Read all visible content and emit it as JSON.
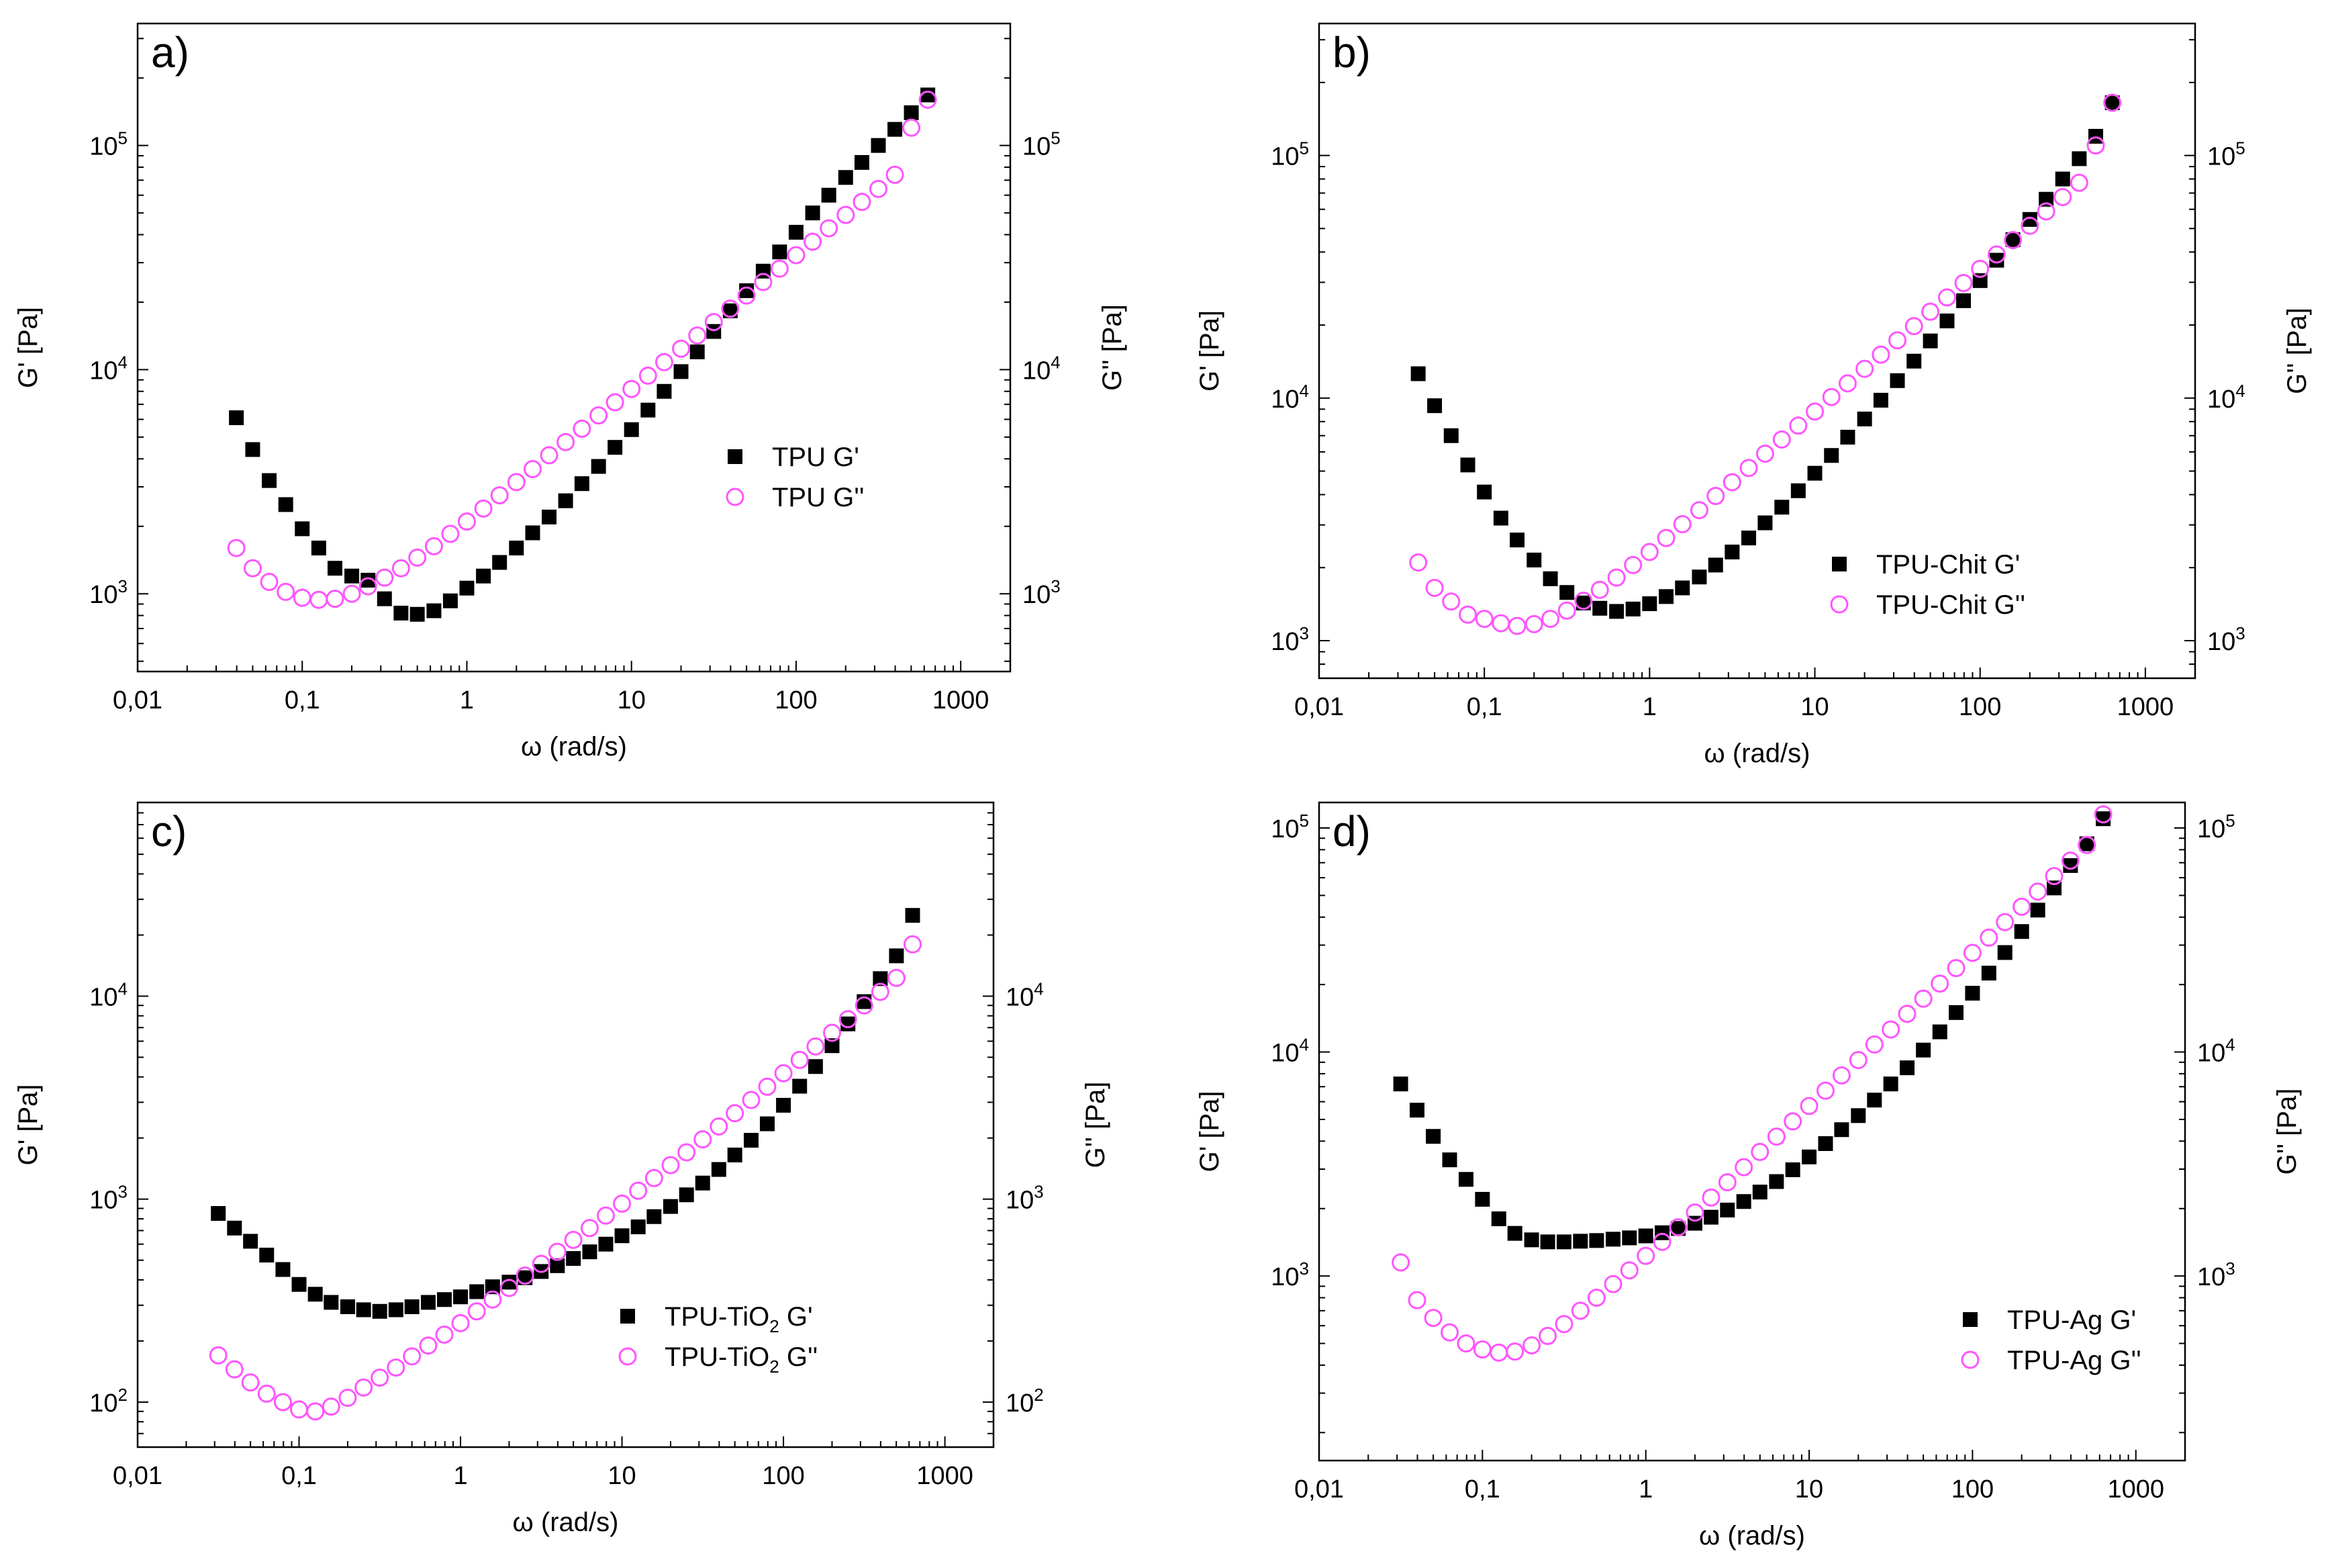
{
  "figure": {
    "colors": {
      "gprime": "#000000",
      "gdoubleprime": "#ff55ff",
      "axis": "#000000"
    }
  },
  "chart_data": [
    {
      "panel": "a)",
      "type": "scatter",
      "xscale": "log",
      "yscale": "log",
      "xlim": [
        0.01,
        2000
      ],
      "ylim": [
        450,
        350000
      ],
      "xticks": [
        "0,01",
        "0,1",
        "1",
        "10",
        "100",
        "1000"
      ],
      "yticks_left": [
        "10^3",
        "10^4",
        "10^5"
      ],
      "yticks_right": [
        "10^3",
        "10^4",
        "10^5"
      ],
      "xlabel": "ω (rad/s)",
      "ylabel_left": "G' [Pa]",
      "ylabel_right": "G'' [Pa]",
      "legend_position": "middle-right",
      "series": [
        {
          "name": "TPU G'",
          "marker": "filled-square",
          "x": [
            0.0398,
            0.05,
            0.063,
            0.0794,
            0.1,
            0.126,
            0.158,
            0.2,
            0.251,
            0.316,
            0.398,
            0.5,
            0.631,
            0.794,
            1,
            1.26,
            1.58,
            2,
            2.51,
            3.16,
            3.98,
            5,
            6.31,
            7.94,
            10,
            12.6,
            15.8,
            20,
            25.1,
            31.6,
            39.8,
            50,
            63.1,
            79.4,
            100,
            126,
            158,
            200,
            251,
            316,
            398,
            501,
            631
          ],
          "y": [
            6100,
            4400,
            3200,
            2500,
            1950,
            1600,
            1300,
            1200,
            1150,
            950,
            820,
            810,
            840,
            930,
            1060,
            1200,
            1380,
            1600,
            1870,
            2200,
            2600,
            3100,
            3700,
            4500,
            5400,
            6600,
            8000,
            9800,
            12000,
            14800,
            18300,
            22500,
            27500,
            33500,
            41000,
            50000,
            60000,
            72000,
            84000,
            100000,
            118000,
            140000,
            168000
          ]
        },
        {
          "name": "TPU G''",
          "marker": "open-circle",
          "x": [
            0.0398,
            0.05,
            0.063,
            0.0794,
            0.1,
            0.126,
            0.158,
            0.2,
            0.251,
            0.316,
            0.398,
            0.5,
            0.631,
            0.794,
            1,
            1.26,
            1.58,
            2,
            2.51,
            3.16,
            3.98,
            5,
            6.31,
            7.94,
            10,
            12.6,
            15.8,
            20,
            25.1,
            31.6,
            39.8,
            50,
            63.1,
            79.4,
            100,
            126,
            158,
            200,
            251,
            316,
            398,
            501,
            631
          ],
          "y": [
            1600,
            1300,
            1130,
            1020,
            960,
            940,
            950,
            1000,
            1080,
            1180,
            1300,
            1450,
            1630,
            1850,
            2100,
            2400,
            2750,
            3150,
            3600,
            4150,
            4750,
            5450,
            6250,
            7150,
            8200,
            9400,
            10800,
            12400,
            14200,
            16300,
            18700,
            21400,
            24600,
            28200,
            32400,
            37200,
            42700,
            49000,
            56000,
            64000,
            74000,
            120000,
            160000
          ]
        }
      ]
    },
    {
      "panel": "b)",
      "type": "scatter",
      "xscale": "log",
      "yscale": "log",
      "xlim": [
        0.01,
        2000
      ],
      "ylim": [
        700,
        350000
      ],
      "xticks": [
        "0,01",
        "0,1",
        "1",
        "10",
        "100",
        "1000"
      ],
      "yticks_left": [
        "10^3",
        "10^4",
        "10^5"
      ],
      "yticks_right": [
        "10^3",
        "10^4",
        "10^5"
      ],
      "xlabel": "ω (rad/s)",
      "ylabel_left": "G' [Pa]",
      "ylabel_right": "G'' [Pa]",
      "legend_position": "lower-right",
      "series": [
        {
          "name": "TPU-Chit G'",
          "marker": "filled-square",
          "x": [
            0.0398,
            0.05,
            0.063,
            0.0794,
            0.1,
            0.126,
            0.158,
            0.2,
            0.251,
            0.316,
            0.398,
            0.5,
            0.631,
            0.794,
            1,
            1.26,
            1.58,
            2,
            2.51,
            3.16,
            3.98,
            5,
            6.31,
            7.94,
            10,
            12.6,
            15.8,
            20,
            25.1,
            31.6,
            39.8,
            50,
            63.1,
            79.4,
            100,
            126,
            158,
            200,
            251,
            316,
            398,
            501,
            631
          ],
          "y": [
            12600,
            9300,
            7000,
            5300,
            4100,
            3200,
            2600,
            2150,
            1800,
            1580,
            1430,
            1360,
            1320,
            1350,
            1420,
            1520,
            1650,
            1830,
            2050,
            2320,
            2650,
            3060,
            3550,
            4150,
            4900,
            5800,
            6900,
            8200,
            9800,
            11800,
            14200,
            17200,
            20800,
            25200,
            30500,
            37000,
            45000,
            54500,
            66000,
            80000,
            97000,
            120000,
            165000
          ]
        },
        {
          "name": "TPU-Chit G''",
          "marker": "open-circle",
          "x": [
            0.0398,
            0.05,
            0.063,
            0.0794,
            0.1,
            0.126,
            0.158,
            0.2,
            0.251,
            0.316,
            0.398,
            0.5,
            0.631,
            0.794,
            1,
            1.26,
            1.58,
            2,
            2.51,
            3.16,
            3.98,
            5,
            6.31,
            7.94,
            10,
            12.6,
            15.8,
            20,
            25.1,
            31.6,
            39.8,
            50,
            63.1,
            79.4,
            100,
            126,
            158,
            200,
            251,
            316,
            398,
            501,
            631
          ],
          "y": [
            2100,
            1650,
            1450,
            1280,
            1230,
            1180,
            1150,
            1170,
            1230,
            1330,
            1460,
            1620,
            1820,
            2050,
            2320,
            2650,
            3020,
            3450,
            3950,
            4500,
            5150,
            5900,
            6750,
            7700,
            8800,
            10100,
            11500,
            13200,
            15100,
            17300,
            19800,
            22700,
            26000,
            29800,
            34100,
            39100,
            44800,
            51300,
            58800,
            67400,
            77200,
            110000,
            165000
          ]
        }
      ]
    },
    {
      "panel": "c)",
      "type": "scatter",
      "xscale": "log",
      "yscale": "log",
      "xlim": [
        0.01,
        2000
      ],
      "ylim": [
        60,
        90000
      ],
      "xticks": [
        "0,01",
        "0,1",
        "1",
        "10",
        "100",
        "1000"
      ],
      "yticks_left": [
        "10^2",
        "10^3",
        "10^4"
      ],
      "yticks_right": [
        "10^2",
        "10^3",
        "10^4"
      ],
      "xlabel": "ω (rad/s)",
      "ylabel_left": "G' [Pa]",
      "ylabel_right": "G'' [Pa]",
      "legend_position": "lower-right",
      "series": [
        {
          "name": "TPU-TiO2 G'",
          "marker": "filled-square",
          "x": [
            0.0316,
            0.0398,
            0.05,
            0.063,
            0.0794,
            0.1,
            0.126,
            0.158,
            0.2,
            0.251,
            0.316,
            0.398,
            0.5,
            0.631,
            0.794,
            1,
            1.26,
            1.58,
            2,
            2.51,
            3.16,
            3.98,
            5,
            6.31,
            7.94,
            10,
            12.6,
            15.8,
            20,
            25.1,
            31.6,
            39.8,
            50,
            63.1,
            79.4,
            100,
            126,
            158,
            200,
            251,
            316,
            398,
            501,
            631
          ],
          "y": [
            850,
            720,
            620,
            530,
            450,
            380,
            340,
            310,
            295,
            285,
            280,
            285,
            295,
            310,
            320,
            330,
            350,
            370,
            390,
            410,
            440,
            470,
            510,
            550,
            600,
            660,
            730,
            820,
            920,
            1050,
            1200,
            1400,
            1650,
            1950,
            2350,
            2900,
            3600,
            4500,
            5700,
            7300,
            9400,
            12200,
            15800,
            25000
          ]
        },
        {
          "name": "TPU-TiO2 G''",
          "marker": "open-circle",
          "x": [
            0.0316,
            0.0398,
            0.05,
            0.063,
            0.0794,
            0.1,
            0.126,
            0.158,
            0.2,
            0.251,
            0.316,
            0.398,
            0.5,
            0.631,
            0.794,
            1,
            1.26,
            1.58,
            2,
            2.51,
            3.16,
            3.98,
            5,
            6.31,
            7.94,
            10,
            12.6,
            15.8,
            20,
            25.1,
            31.6,
            39.8,
            50,
            63.1,
            79.4,
            100,
            126,
            158,
            200,
            251,
            316,
            398,
            501,
            631
          ],
          "y": [
            170,
            145,
            125,
            110,
            100,
            92,
            90,
            95,
            105,
            118,
            132,
            148,
            168,
            190,
            215,
            245,
            280,
            320,
            365,
            420,
            480,
            550,
            630,
            720,
            830,
            950,
            1100,
            1270,
            1470,
            1700,
            1970,
            2280,
            2650,
            3080,
            3580,
            4170,
            4850,
            5650,
            6600,
            7700,
            9000,
            10500,
            12300,
            18000
          ]
        }
      ]
    },
    {
      "panel": "d)",
      "type": "scatter",
      "xscale": "log",
      "yscale": "log",
      "xlim": [
        0.01,
        2000
      ],
      "ylim": [
        150,
        130000
      ],
      "xticks": [
        "0,01",
        "0,1",
        "1",
        "10",
        "100",
        "1000"
      ],
      "yticks_left": [
        "10^3",
        "10^4",
        "10^5"
      ],
      "yticks_right": [
        "10^3",
        "10^4",
        "10^5"
      ],
      "xlabel": "ω (rad/s)",
      "ylabel_left": "G' [Pa]",
      "ylabel_right": "G'' [Pa]",
      "legend_position": "lower-right",
      "series": [
        {
          "name": "TPU-Ag G'",
          "marker": "filled-square",
          "x": [
            0.0316,
            0.0398,
            0.05,
            0.063,
            0.0794,
            0.1,
            0.126,
            0.158,
            0.2,
            0.251,
            0.316,
            0.398,
            0.5,
            0.631,
            0.794,
            1,
            1.26,
            1.58,
            2,
            2.51,
            3.16,
            3.98,
            5,
            6.31,
            7.94,
            10,
            12.6,
            15.8,
            20,
            25.1,
            31.6,
            39.8,
            50,
            63.1,
            79.4,
            100,
            126,
            158,
            200,
            251,
            316,
            398,
            501,
            631
          ],
          "y": [
            7200,
            5500,
            4200,
            3300,
            2700,
            2200,
            1800,
            1550,
            1450,
            1420,
            1420,
            1430,
            1440,
            1460,
            1480,
            1510,
            1560,
            1630,
            1720,
            1830,
            1970,
            2150,
            2370,
            2640,
            2980,
            3400,
            3900,
            4500,
            5200,
            6100,
            7200,
            8500,
            10200,
            12300,
            15000,
            18300,
            22500,
            27800,
            34500,
            43000,
            54000,
            68000,
            85000,
            110000
          ]
        },
        {
          "name": "TPU-Ag G''",
          "marker": "open-circle",
          "x": [
            0.0316,
            0.0398,
            0.05,
            0.063,
            0.0794,
            0.1,
            0.126,
            0.158,
            0.2,
            0.251,
            0.316,
            0.398,
            0.5,
            0.631,
            0.794,
            1,
            1.26,
            1.58,
            2,
            2.51,
            3.16,
            3.98,
            5,
            6.31,
            7.94,
            10,
            12.6,
            15.8,
            20,
            25.1,
            31.6,
            39.8,
            50,
            63.1,
            79.4,
            100,
            126,
            158,
            200,
            251,
            316,
            398,
            501,
            631
          ],
          "y": [
            1150,
            780,
            650,
            560,
            500,
            470,
            455,
            460,
            490,
            540,
            610,
            700,
            800,
            920,
            1060,
            1230,
            1420,
            1650,
            1920,
            2240,
            2620,
            3060,
            3580,
            4190,
            4900,
            5740,
            6720,
            7860,
            9200,
            10800,
            12600,
            14800,
            17300,
            20200,
            23700,
            27700,
            32400,
            38000,
            44500,
            52000,
            61000,
            71500,
            84000,
            115000
          ]
        }
      ]
    }
  ]
}
